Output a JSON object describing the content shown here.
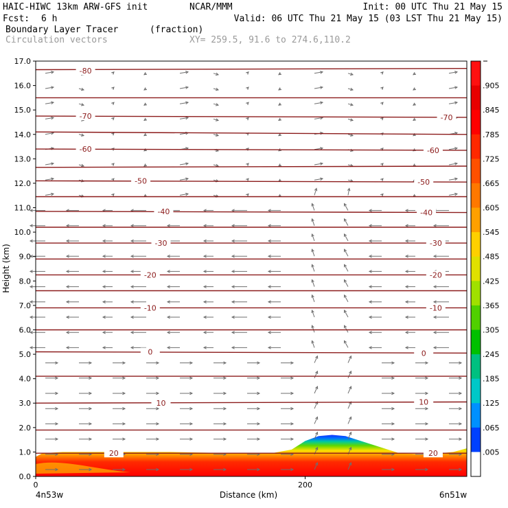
{
  "header": {
    "model": "HAIC-HIWC 13km ARW-GFS init",
    "org": "NCAR/MMM",
    "init": "Init: 00 UTC Thu 21 May 15",
    "fcst_label": "Fcst:",
    "fcst_value": "6 h",
    "valid": "Valid: 06 UTC Thu 21 May 15 (03 LST Thu 21 May 15)",
    "field_name": "Boundary Layer Tracer",
    "field_units": "(fraction)",
    "vector_name": "Circulation vectors",
    "xy": "XY= 259.5, 91.6 to 274.6,110.2"
  },
  "chart_data": {
    "type": "heatmap",
    "title": "Boundary Layer Tracer",
    "units": "(fraction)",
    "xlabel": "Distance (km)",
    "ylabel": "Height (km)",
    "xlim": [
      0,
      320
    ],
    "ylim": [
      0,
      17
    ],
    "x_ticks": [
      0,
      200
    ],
    "x_tick_labels": [
      "0",
      "200"
    ],
    "x_end_labels": [
      "4n53w",
      "6n51w"
    ],
    "y_ticks": [
      0,
      1,
      2,
      3,
      4,
      5,
      6,
      7,
      8,
      9,
      10,
      11,
      12,
      13,
      14,
      15,
      16,
      17
    ],
    "y_tick_labels": [
      "0.0",
      "1.0",
      "2.0",
      "3.0",
      "4.0",
      "5.0",
      "6.0",
      "7.0",
      "8.0",
      "9.0",
      "10.0",
      "11.0",
      "12.0",
      "13.0",
      "14.0",
      "15.0",
      "16.0",
      "17.0"
    ],
    "colorbar": {
      "labels": [
        ".005",
        ".065",
        ".125",
        ".185",
        ".245",
        ".305",
        ".365",
        ".425",
        ".485",
        ".545",
        ".605",
        ".665",
        ".725",
        ".785",
        ".845",
        ".905"
      ],
      "colors": [
        "#ffffff",
        "#0040ff",
        "#0090ff",
        "#00c8c8",
        "#00c080",
        "#00c000",
        "#50d000",
        "#a0e000",
        "#e0e000",
        "#ffd000",
        "#ffa000",
        "#ff7800",
        "#ff5000",
        "#ff2800",
        "#ff0000",
        "#e80000",
        "#ff1010"
      ]
    },
    "tracer_top_km": {
      "x": [
        0,
        5,
        20,
        50,
        100,
        150,
        175,
        190,
        200,
        210,
        220,
        230,
        250,
        270,
        290,
        310,
        320
      ],
      "top": [
        0.8,
        0.95,
        1.0,
        1.0,
        1.0,
        0.95,
        0.95,
        1.1,
        1.45,
        1.65,
        1.7,
        1.65,
        1.3,
        0.95,
        0.9,
        1.0,
        1.15
      ]
    },
    "temperature_contours": [
      {
        "label": "-80",
        "h": [
          16.65,
          16.7
        ],
        "label_at": [
          {
            "x": 37,
            "y": 16.6
          }
        ]
      },
      {
        "label": "",
        "h": [
          15.5,
          15.5
        ]
      },
      {
        "label": "-70",
        "h": [
          14.75,
          14.7
        ],
        "label_at": [
          {
            "x": 37,
            "y": 14.75
          },
          {
            "x": 305,
            "y": 14.7
          }
        ]
      },
      {
        "label": "",
        "h": [
          14.1,
          14.0
        ]
      },
      {
        "label": "-60",
        "h": [
          13.4,
          13.35
        ],
        "label_at": [
          {
            "x": 37,
            "y": 13.4
          },
          {
            "x": 295,
            "y": 13.35
          }
        ]
      },
      {
        "label": "",
        "h": [
          12.65,
          12.7
        ]
      },
      {
        "label": "-50",
        "h": [
          12.1,
          12.05
        ],
        "label_at": [
          {
            "x": 78,
            "y": 12.1
          },
          {
            "x": 288,
            "y": 12.05
          }
        ]
      },
      {
        "label": "",
        "h": [
          11.45,
          11.45
        ]
      },
      {
        "label": "-40",
        "h": [
          10.85,
          10.8
        ],
        "label_at": [
          {
            "x": 95,
            "y": 10.85
          },
          {
            "x": 290,
            "y": 10.8
          }
        ]
      },
      {
        "label": "",
        "h": [
          10.2,
          10.2
        ]
      },
      {
        "label": "-30",
        "h": [
          9.55,
          9.55
        ],
        "label_at": [
          {
            "x": 93,
            "y": 9.55
          },
          {
            "x": 297,
            "y": 9.55
          }
        ]
      },
      {
        "label": "",
        "h": [
          8.9,
          8.9
        ]
      },
      {
        "label": "-20",
        "h": [
          8.25,
          8.25
        ],
        "label_at": [
          {
            "x": 85,
            "y": 8.25
          },
          {
            "x": 297,
            "y": 8.25
          }
        ]
      },
      {
        "label": "",
        "h": [
          7.6,
          7.6
        ]
      },
      {
        "label": "-10",
        "h": [
          6.9,
          6.9
        ],
        "label_at": [
          {
            "x": 85,
            "y": 6.9
          },
          {
            "x": 297,
            "y": 6.9
          }
        ]
      },
      {
        "label": "",
        "h": [
          6.0,
          6.0
        ]
      },
      {
        "label": "0",
        "h": [
          5.1,
          5.05
        ],
        "label_at": [
          {
            "x": 85,
            "y": 5.1
          },
          {
            "x": 288,
            "y": 5.05
          }
        ]
      },
      {
        "label": "",
        "h": [
          4.1,
          4.1
        ]
      },
      {
        "label": "10",
        "h": [
          3.0,
          3.05
        ],
        "label_at": [
          {
            "x": 93,
            "y": 3.0
          },
          {
            "x": 288,
            "y": 3.05
          }
        ]
      },
      {
        "label": "",
        "h": [
          1.9,
          1.9
        ]
      },
      {
        "label": "20",
        "h": [
          0.95,
          0.95
        ],
        "label_at": [
          {
            "x": 58,
            "y": 0.95
          },
          {
            "x": 295,
            "y": 0.95
          }
        ]
      }
    ]
  }
}
